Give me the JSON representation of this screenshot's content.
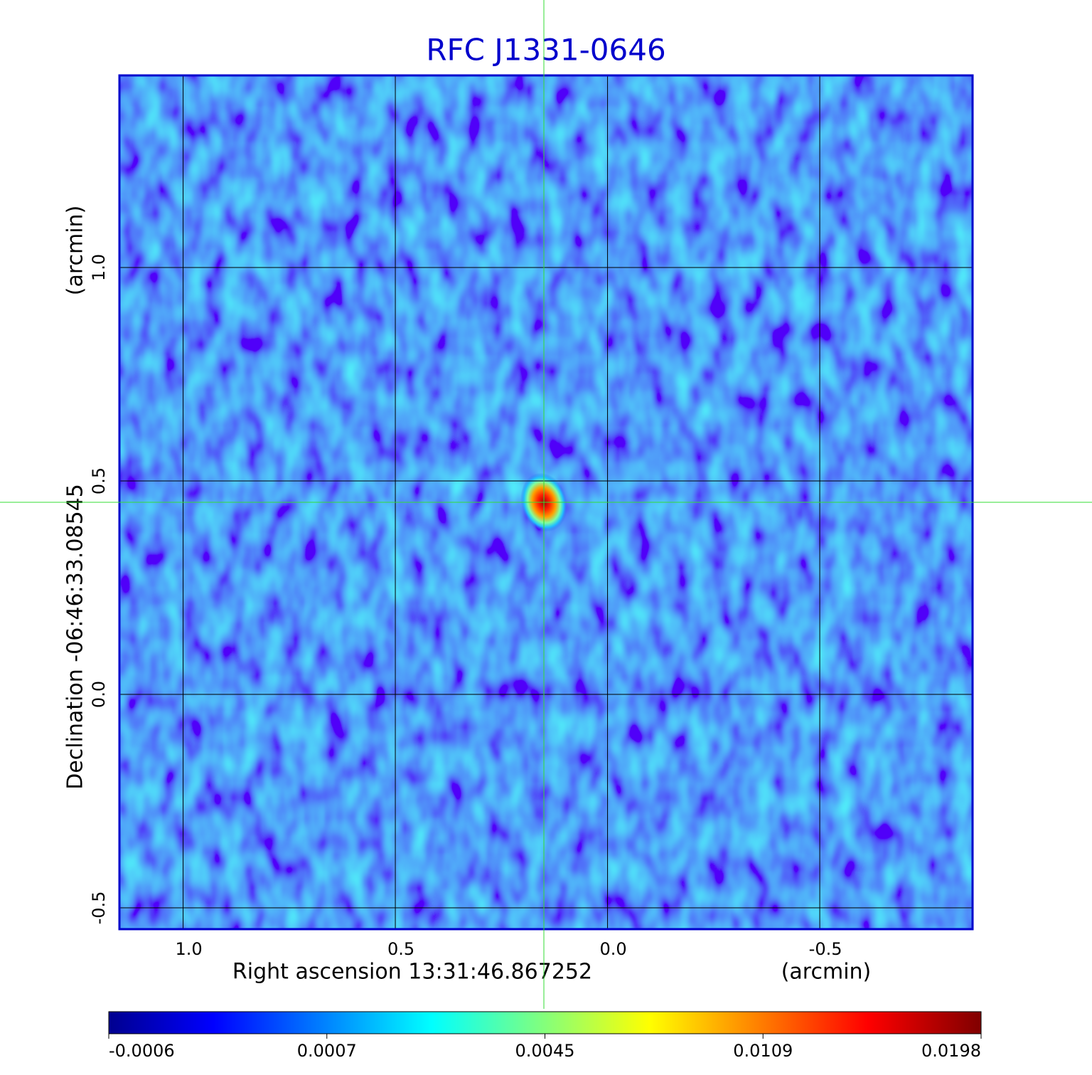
{
  "chart_data": {
    "type": "image",
    "title": "RFC J1331-0646",
    "xlabel": "Right ascension  13:31:46.867252",
    "xunit": "(arcmin)",
    "ylabel": "Declination  -06:46:33.08545",
    "yunit": "(arcmin)",
    "xlim": [
      1.15,
      -0.86
    ],
    "ylim": [
      -0.55,
      1.45
    ],
    "xticks": [
      {
        "value": 1,
        "label": "1.0"
      },
      0.5,
      {
        "value": 0,
        "label": "0.0"
      },
      -0.5
    ],
    "yticks": [
      -0.5,
      {
        "value": 0,
        "label": "0.0"
      },
      0.5,
      {
        "value": 1,
        "label": "1.0"
      }
    ],
    "grid": true,
    "marker": {
      "x": 0.15,
      "y": 0.45,
      "color": "#33dd33"
    },
    "colorbar": {
      "ticks": [
        -0.0006,
        0.0007,
        0.0045,
        0.0109,
        0.0198
      ]
    }
  }
}
